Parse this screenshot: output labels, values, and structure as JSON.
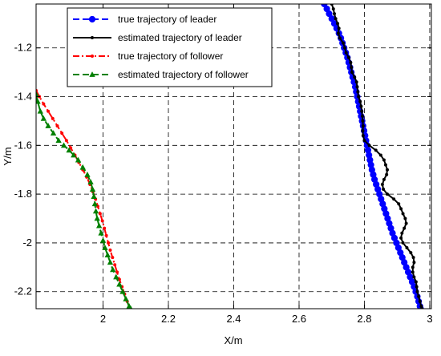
{
  "chart_data": {
    "type": "line",
    "xlabel": "X/m",
    "ylabel": "Y/m",
    "xlim": [
      1.795,
      3.005
    ],
    "ylim": [
      -2.27,
      -1.02
    ],
    "xticks": [
      2,
      2.2,
      2.4,
      2.6,
      2.8,
      3
    ],
    "xtick_labels": [
      "2",
      "2.2",
      "2.4",
      "2.6",
      "2.8",
      "3"
    ],
    "yticks": [
      -1.2,
      -1.4,
      -1.6,
      -1.8,
      -2,
      -2.2
    ],
    "ytick_labels": [
      "-1.2",
      "-1.4",
      "-1.6",
      "-1.8",
      "-2",
      "-2.2"
    ],
    "grid": true,
    "legend_position": "top-left",
    "series": [
      {
        "name": "true trajectory of leader",
        "color": "#0000ff",
        "line_style": "dashed",
        "marker": "circle",
        "points": [
          [
            2.677,
            -1.02
          ],
          [
            2.685,
            -1.04
          ],
          [
            2.692,
            -1.06
          ],
          [
            2.7,
            -1.08
          ],
          [
            2.708,
            -1.1
          ],
          [
            2.715,
            -1.12
          ],
          [
            2.722,
            -1.14
          ],
          [
            2.728,
            -1.16
          ],
          [
            2.733,
            -1.18
          ],
          [
            2.738,
            -1.2
          ],
          [
            2.743,
            -1.22
          ],
          [
            2.748,
            -1.24
          ],
          [
            2.752,
            -1.26
          ],
          [
            2.756,
            -1.28
          ],
          [
            2.76,
            -1.3
          ],
          [
            2.764,
            -1.32
          ],
          [
            2.768,
            -1.34
          ],
          [
            2.772,
            -1.36
          ],
          [
            2.775,
            -1.38
          ],
          [
            2.778,
            -1.4
          ],
          [
            2.781,
            -1.42
          ],
          [
            2.784,
            -1.44
          ],
          [
            2.787,
            -1.46
          ],
          [
            2.79,
            -1.48
          ],
          [
            2.793,
            -1.5
          ],
          [
            2.796,
            -1.52
          ],
          [
            2.799,
            -1.54
          ],
          [
            2.802,
            -1.56
          ],
          [
            2.805,
            -1.58
          ],
          [
            2.808,
            -1.6
          ],
          [
            2.811,
            -1.62
          ],
          [
            2.814,
            -1.64
          ],
          [
            2.817,
            -1.66
          ],
          [
            2.82,
            -1.68
          ],
          [
            2.823,
            -1.7
          ],
          [
            2.827,
            -1.72
          ],
          [
            2.831,
            -1.74
          ],
          [
            2.836,
            -1.76
          ],
          [
            2.841,
            -1.78
          ],
          [
            2.846,
            -1.8
          ],
          [
            2.851,
            -1.82
          ],
          [
            2.856,
            -1.84
          ],
          [
            2.861,
            -1.86
          ],
          [
            2.866,
            -1.88
          ],
          [
            2.871,
            -1.9
          ],
          [
            2.876,
            -1.92
          ],
          [
            2.881,
            -1.94
          ],
          [
            2.886,
            -1.96
          ],
          [
            2.892,
            -1.98
          ],
          [
            2.898,
            -2.0
          ],
          [
            2.904,
            -2.02
          ],
          [
            2.91,
            -2.04
          ],
          [
            2.916,
            -2.06
          ],
          [
            2.922,
            -2.08
          ],
          [
            2.928,
            -2.1
          ],
          [
            2.934,
            -2.12
          ],
          [
            2.94,
            -2.14
          ],
          [
            2.946,
            -2.16
          ],
          [
            2.952,
            -2.18
          ],
          [
            2.957,
            -2.2
          ],
          [
            2.962,
            -2.22
          ],
          [
            2.966,
            -2.24
          ],
          [
            2.97,
            -2.26
          ],
          [
            2.972,
            -2.27
          ]
        ]
      },
      {
        "name": "estimated trajectory of leader",
        "color": "#000000",
        "line_style": "solid",
        "marker": "point",
        "points": [
          [
            2.7,
            -1.02
          ],
          [
            2.705,
            -1.04
          ],
          [
            2.708,
            -1.06
          ],
          [
            2.712,
            -1.08
          ],
          [
            2.718,
            -1.1
          ],
          [
            2.722,
            -1.12
          ],
          [
            2.72,
            -1.14
          ],
          [
            2.725,
            -1.16
          ],
          [
            2.735,
            -1.18
          ],
          [
            2.74,
            -1.2
          ],
          [
            2.744,
            -1.22
          ],
          [
            2.752,
            -1.24
          ],
          [
            2.758,
            -1.26
          ],
          [
            2.76,
            -1.28
          ],
          [
            2.762,
            -1.3
          ],
          [
            2.77,
            -1.32
          ],
          [
            2.776,
            -1.34
          ],
          [
            2.778,
            -1.36
          ],
          [
            2.78,
            -1.38
          ],
          [
            2.782,
            -1.4
          ],
          [
            2.787,
            -1.42
          ],
          [
            2.79,
            -1.44
          ],
          [
            2.792,
            -1.46
          ],
          [
            2.794,
            -1.48
          ],
          [
            2.795,
            -1.5
          ],
          [
            2.796,
            -1.52
          ],
          [
            2.795,
            -1.54
          ],
          [
            2.796,
            -1.56
          ],
          [
            2.8,
            -1.58
          ],
          [
            2.815,
            -1.6
          ],
          [
            2.835,
            -1.62
          ],
          [
            2.85,
            -1.64
          ],
          [
            2.86,
            -1.66
          ],
          [
            2.865,
            -1.68
          ],
          [
            2.87,
            -1.7
          ],
          [
            2.868,
            -1.72
          ],
          [
            2.86,
            -1.74
          ],
          [
            2.855,
            -1.76
          ],
          [
            2.858,
            -1.78
          ],
          [
            2.87,
            -1.8
          ],
          [
            2.89,
            -1.82
          ],
          [
            2.905,
            -1.84
          ],
          [
            2.912,
            -1.86
          ],
          [
            2.918,
            -1.88
          ],
          [
            2.925,
            -1.9
          ],
          [
            2.928,
            -1.92
          ],
          [
            2.922,
            -1.94
          ],
          [
            2.915,
            -1.96
          ],
          [
            2.912,
            -1.98
          ],
          [
            2.918,
            -2.0
          ],
          [
            2.93,
            -2.02
          ],
          [
            2.942,
            -2.04
          ],
          [
            2.95,
            -2.06
          ],
          [
            2.952,
            -2.08
          ],
          [
            2.948,
            -2.1
          ],
          [
            2.948,
            -2.12
          ],
          [
            2.952,
            -2.14
          ],
          [
            2.958,
            -2.16
          ],
          [
            2.96,
            -2.18
          ],
          [
            2.962,
            -2.2
          ],
          [
            2.966,
            -2.22
          ],
          [
            2.97,
            -2.24
          ],
          [
            2.974,
            -2.26
          ],
          [
            2.976,
            -2.27
          ]
        ]
      },
      {
        "name": "true trajectory of follower",
        "color": "#ff0000",
        "line_style": "dashdot",
        "marker": "point",
        "points": [
          [
            1.795,
            -1.375
          ],
          [
            1.805,
            -1.4
          ],
          [
            1.818,
            -1.43
          ],
          [
            1.832,
            -1.46
          ],
          [
            1.846,
            -1.49
          ],
          [
            1.86,
            -1.52
          ],
          [
            1.874,
            -1.55
          ],
          [
            1.888,
            -1.58
          ],
          [
            1.901,
            -1.61
          ],
          [
            1.914,
            -1.64
          ],
          [
            1.926,
            -1.67
          ],
          [
            1.938,
            -1.7
          ],
          [
            1.95,
            -1.73
          ],
          [
            1.96,
            -1.76
          ],
          [
            1.969,
            -1.79
          ],
          [
            1.977,
            -1.82
          ],
          [
            1.984,
            -1.85
          ],
          [
            1.991,
            -1.88
          ],
          [
            1.998,
            -1.91
          ],
          [
            2.004,
            -1.94
          ],
          [
            2.01,
            -1.97
          ],
          [
            2.016,
            -2.0
          ],
          [
            2.022,
            -2.03
          ],
          [
            2.029,
            -2.06
          ],
          [
            2.036,
            -2.09
          ],
          [
            2.043,
            -2.12
          ],
          [
            2.05,
            -2.15
          ],
          [
            2.058,
            -2.18
          ],
          [
            2.066,
            -2.21
          ],
          [
            2.074,
            -2.24
          ],
          [
            2.082,
            -2.27
          ]
        ]
      },
      {
        "name": "estimated trajectory of follower",
        "color": "#008000",
        "line_style": "dashed",
        "marker": "triangle",
        "points": [
          [
            1.795,
            -1.39
          ],
          [
            1.8,
            -1.42
          ],
          [
            1.808,
            -1.46
          ],
          [
            1.818,
            -1.49
          ],
          [
            1.832,
            -1.52
          ],
          [
            1.848,
            -1.55
          ],
          [
            1.864,
            -1.58
          ],
          [
            1.88,
            -1.6
          ],
          [
            1.896,
            -1.62
          ],
          [
            1.91,
            -1.64
          ],
          [
            1.924,
            -1.66
          ],
          [
            1.938,
            -1.69
          ],
          [
            1.952,
            -1.72
          ],
          [
            1.962,
            -1.75
          ],
          [
            1.968,
            -1.78
          ],
          [
            1.972,
            -1.81
          ],
          [
            1.975,
            -1.84
          ],
          [
            1.978,
            -1.87
          ],
          [
            1.982,
            -1.9
          ],
          [
            1.988,
            -1.93
          ],
          [
            1.994,
            -1.96
          ],
          [
            2.0,
            -1.99
          ],
          [
            2.006,
            -2.02
          ],
          [
            2.014,
            -2.05
          ],
          [
            2.022,
            -2.08
          ],
          [
            2.03,
            -2.11
          ],
          [
            2.04,
            -2.14
          ],
          [
            2.05,
            -2.17
          ],
          [
            2.06,
            -2.2
          ],
          [
            2.07,
            -2.23
          ],
          [
            2.08,
            -2.26
          ],
          [
            2.085,
            -2.27
          ]
        ]
      }
    ]
  }
}
